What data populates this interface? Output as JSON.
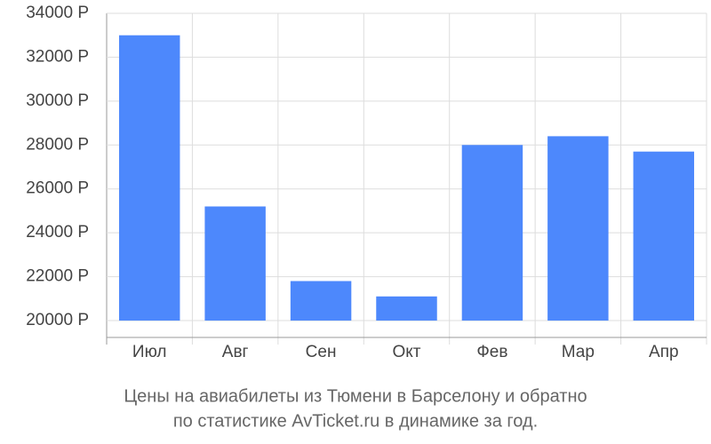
{
  "chart_data": {
    "type": "bar",
    "title": [
      "Цены на авиабилеты из Тюмени в Барселону и обратно",
      "по статистике AvTicket.ru в динамике за год."
    ],
    "categories": [
      "Июл",
      "Авг",
      "Сен",
      "Окт",
      "Фев",
      "Мар",
      "Апр"
    ],
    "values": [
      33000,
      25200,
      21800,
      21100,
      28000,
      28400,
      27700
    ],
    "color": "#4d88fc",
    "ylim": [
      20000,
      34000
    ],
    "yticks": [
      {
        "value": 20000,
        "label": "20000 Р"
      },
      {
        "value": 22000,
        "label": "22000 Р"
      },
      {
        "value": 24000,
        "label": "24000 Р"
      },
      {
        "value": 26000,
        "label": "26000 Р"
      },
      {
        "value": 28000,
        "label": "28000 Р"
      },
      {
        "value": 30000,
        "label": "30000 Р"
      },
      {
        "value": 32000,
        "label": "32000 Р"
      },
      {
        "value": 34000,
        "label": "34000 Р"
      }
    ],
    "grid": true
  }
}
